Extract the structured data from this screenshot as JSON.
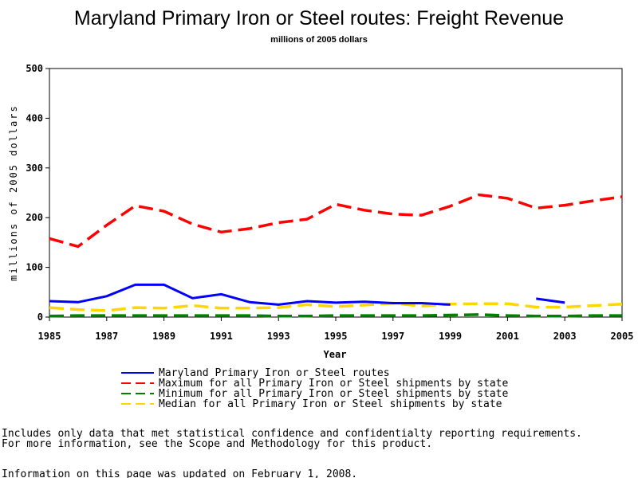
{
  "chart_data": {
    "type": "line",
    "title": "Maryland Primary Iron or Steel routes: Freight Revenue",
    "subtitle": "millions of 2005 dollars",
    "xlabel": "Year",
    "ylabel": "millions of 2005 dollars",
    "xlim": [
      1985,
      2005
    ],
    "ylim": [
      0,
      500
    ],
    "x_ticks": [
      "1985",
      "1987",
      "1989",
      "1991",
      "1993",
      "1995",
      "1997",
      "1999",
      "2001",
      "2003",
      "2005"
    ],
    "y_ticks": [
      "0",
      "100",
      "200",
      "300",
      "400",
      "500"
    ],
    "grid": false,
    "legend_position": "bottom",
    "series": [
      {
        "name": "Maryland Primary Iron or Steel routes",
        "color": "#0000ff",
        "style": "solid",
        "points": [
          [
            1985,
            32
          ],
          [
            1986,
            30
          ],
          [
            1987,
            42
          ],
          [
            1988,
            65
          ],
          [
            1989,
            65
          ],
          [
            1990,
            38
          ],
          [
            1991,
            46
          ],
          [
            1992,
            30
          ],
          [
            1993,
            25
          ],
          [
            1994,
            32
          ],
          [
            1995,
            29
          ],
          [
            1996,
            31
          ],
          [
            1997,
            28
          ],
          [
            1998,
            28
          ],
          [
            1999,
            25
          ],
          [
            2000,
            null
          ],
          [
            2001,
            null
          ],
          [
            2002,
            37
          ],
          [
            2003,
            29
          ]
        ]
      },
      {
        "name": "Maximum for all Primary Iron or Steel shipments by state",
        "color": "#ff0000",
        "style": "dashed",
        "points": [
          [
            1985,
            158
          ],
          [
            1986,
            142
          ],
          [
            1987,
            185
          ],
          [
            1988,
            224
          ],
          [
            1989,
            213
          ],
          [
            1990,
            187
          ],
          [
            1991,
            171
          ],
          [
            1992,
            178
          ],
          [
            1993,
            190
          ],
          [
            1994,
            197
          ],
          [
            1995,
            227
          ],
          [
            1996,
            215
          ],
          [
            1997,
            207
          ],
          [
            1998,
            205
          ],
          [
            1999,
            223
          ],
          [
            2000,
            246
          ],
          [
            2001,
            239
          ],
          [
            2002,
            219
          ],
          [
            2003,
            225
          ],
          [
            2004,
            234
          ],
          [
            2005,
            242
          ]
        ]
      },
      {
        "name": "Minimum for all Primary Iron or Steel shipments by state",
        "color": "#008000",
        "style": "dashed",
        "points": [
          [
            1985,
            2
          ],
          [
            1986,
            3
          ],
          [
            1987,
            3
          ],
          [
            1988,
            3
          ],
          [
            1989,
            3
          ],
          [
            1990,
            3
          ],
          [
            1991,
            3
          ],
          [
            1992,
            3
          ],
          [
            1993,
            2
          ],
          [
            1994,
            2
          ],
          [
            1995,
            3
          ],
          [
            1996,
            3
          ],
          [
            1997,
            3
          ],
          [
            1998,
            3
          ],
          [
            1999,
            4
          ],
          [
            2000,
            5
          ],
          [
            2001,
            3
          ],
          [
            2002,
            2
          ],
          [
            2003,
            2
          ],
          [
            2004,
            3
          ],
          [
            2005,
            3
          ]
        ]
      },
      {
        "name": "Median for all Primary Iron or Steel shipments by state",
        "color": "#ffd700",
        "style": "dashed",
        "points": [
          [
            1985,
            19
          ],
          [
            1986,
            15
          ],
          [
            1987,
            13
          ],
          [
            1988,
            19
          ],
          [
            1989,
            18
          ],
          [
            1990,
            23
          ],
          [
            1991,
            18
          ],
          [
            1992,
            18
          ],
          [
            1993,
            19
          ],
          [
            1994,
            25
          ],
          [
            1995,
            21
          ],
          [
            1996,
            24
          ],
          [
            1997,
            28
          ],
          [
            1998,
            22
          ],
          [
            1999,
            26
          ],
          [
            2000,
            27
          ],
          [
            2001,
            27
          ],
          [
            2002,
            20
          ],
          [
            2003,
            20
          ],
          [
            2004,
            23
          ],
          [
            2005,
            26
          ]
        ]
      }
    ]
  },
  "footnotes": {
    "line1": "Includes only data that met statistical confidence and confidentialty reporting requirements.",
    "line2": "For more information, see the Scope and Methodology for this product.",
    "line3": "Information on this page was updated on February 1, 2008."
  }
}
